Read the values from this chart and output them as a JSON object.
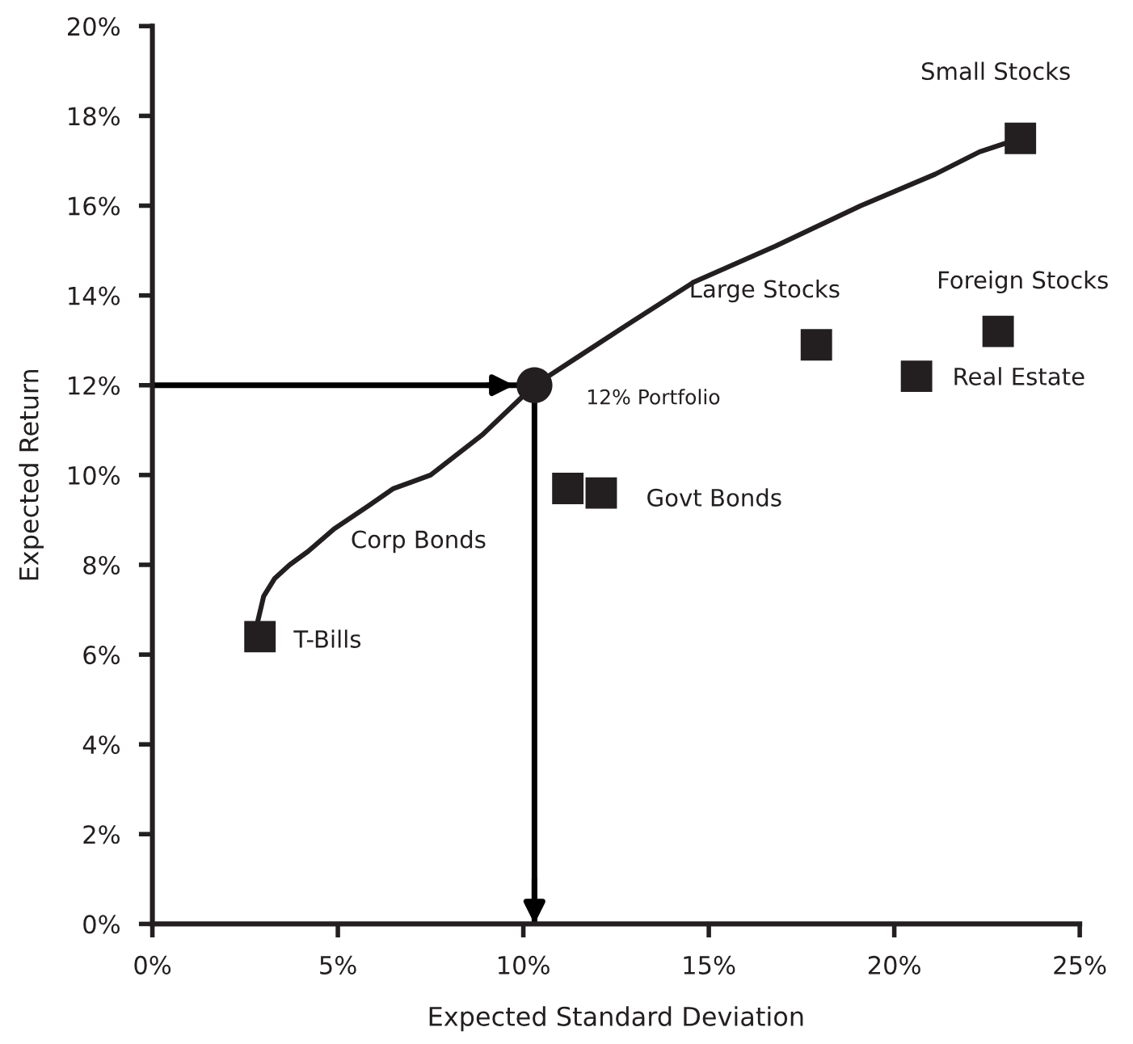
{
  "chart_data": {
    "type": "scatter",
    "xlabel": "Expected Standard Deviation",
    "ylabel": "Expected Return",
    "xlim": [
      0,
      25
    ],
    "ylim": [
      0,
      20
    ],
    "xticks": [
      {
        "value": 0,
        "label": "0%"
      },
      {
        "value": 5,
        "label": "5%"
      },
      {
        "value": 10,
        "label": "10%"
      },
      {
        "value": 15,
        "label": "15%"
      },
      {
        "value": 20,
        "label": "20%"
      },
      {
        "value": 25,
        "label": "25%"
      }
    ],
    "yticks": [
      {
        "value": 0,
        "label": "0%"
      },
      {
        "value": 2,
        "label": "2%"
      },
      {
        "value": 4,
        "label": "4%"
      },
      {
        "value": 6,
        "label": "6%"
      },
      {
        "value": 8,
        "label": "8%"
      },
      {
        "value": 10,
        "label": "10%"
      },
      {
        "value": 12,
        "label": "12%"
      },
      {
        "value": 14,
        "label": "14%"
      },
      {
        "value": 16,
        "label": "16%"
      },
      {
        "value": 18,
        "label": "18%"
      },
      {
        "value": 20,
        "label": "20%"
      }
    ],
    "grid": false,
    "series": [
      {
        "type": "line",
        "color": "#231f20",
        "line_style": "solid",
        "x": [
          2.8,
          3.0,
          3.3,
          3.7,
          4.2,
          4.9,
          5.8,
          6.5,
          7.5,
          8.9,
          10.3,
          11.6,
          12.9,
          14.6,
          16.8,
          19.1,
          21.1,
          22.3,
          23.4
        ],
        "values": [
          6.6,
          7.3,
          7.7,
          8.0,
          8.3,
          8.8,
          9.3,
          9.7,
          10.0,
          10.9,
          12.0,
          12.7,
          13.4,
          14.3,
          15.1,
          16.0,
          16.7,
          17.2,
          17.5
        ]
      },
      {
        "marker": "square",
        "color": "#231f20",
        "x": [
          2.9,
          11.2,
          12.1,
          17.9,
          22.8,
          20.6,
          23.4
        ],
        "values": [
          6.4,
          9.7,
          9.6,
          12.9,
          13.2,
          12.2,
          17.5
        ]
      },
      {
        "marker": "circle",
        "color": "#231f20",
        "x": [
          10.3
        ],
        "values": [
          12
        ]
      }
    ],
    "ref_lines": [
      {
        "axis": "y",
        "value": 12,
        "color": "#000000"
      },
      {
        "axis": "x",
        "value": 10.3,
        "color": "#000000"
      }
    ],
    "annotations": [
      {
        "text": "T-Bills",
        "x": 2.9,
        "y": 6.4
      },
      "Corp Bonds",
      {
        "text": "Govt Bonds",
        "x": 12.1,
        "y": 9.6
      },
      {
        "text": "Large Stocks",
        "x": 17.9,
        "y": 12.9
      },
      {
        "text": "Foreign Stocks",
        "x": 22.8,
        "y": 13.2
      },
      {
        "text": "Real Estate",
        "x": 20.6,
        "y": 12.2
      },
      {
        "text": "Small Stocks",
        "x": 23.4,
        "y": 17.5
      },
      {
        "text": "12% Portfolio",
        "x": 10.3,
        "y": 12
      }
    ]
  }
}
